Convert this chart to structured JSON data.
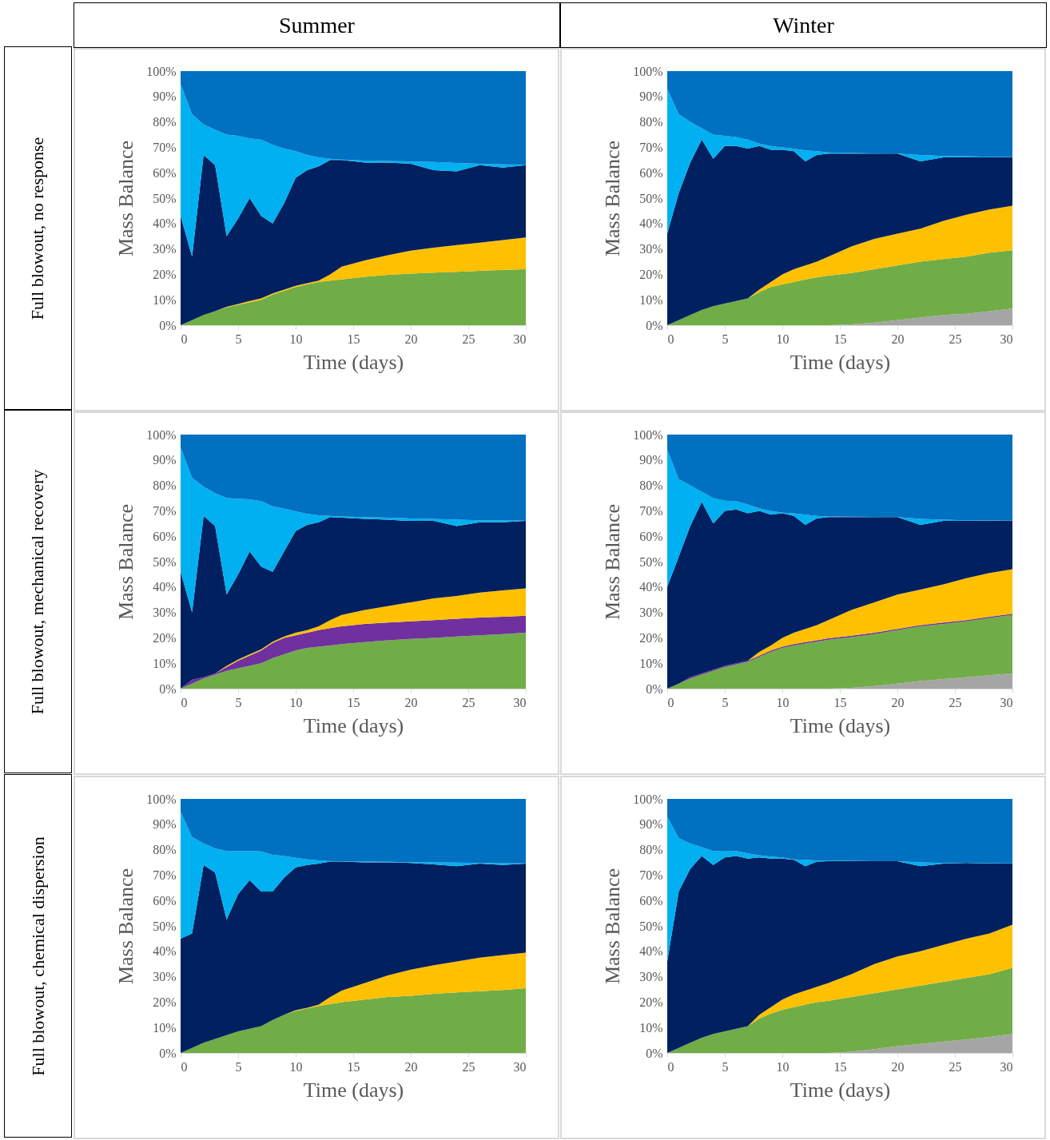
{
  "chart_data": [
    {
      "type": "area",
      "stacked": true,
      "title": "Summer",
      "annotations": [
        "Full blowout, no response"
      ],
      "xlabel": "Time (days)",
      "ylabel": "Mass Balance",
      "xlim": [
        0,
        30
      ],
      "ylim": [
        0,
        100
      ],
      "xticks": [
        0,
        5,
        10,
        15,
        20,
        25,
        30
      ],
      "yticks": [
        {
          "value": 0,
          "label": "0%"
        },
        {
          "value": 10,
          "label": "10%"
        },
        {
          "value": 20,
          "label": "20%"
        },
        {
          "value": 30,
          "label": "30%"
        },
        {
          "value": 40,
          "label": "40%"
        },
        {
          "value": 50,
          "label": "50%"
        },
        {
          "value": 60,
          "label": "60%"
        },
        {
          "value": 70,
          "label": "70%"
        },
        {
          "value": 80,
          "label": "80%"
        },
        {
          "value": 90,
          "label": "90%"
        },
        {
          "value": 100,
          "label": "100%"
        }
      ],
      "x": [
        0,
        1,
        2,
        3,
        4,
        5,
        6,
        7,
        8,
        9,
        10,
        11,
        12,
        13,
        14,
        16,
        18,
        20,
        22,
        24,
        26,
        28,
        30
      ],
      "series": [
        {
          "color": "#70ad47",
          "values": [
            0,
            2,
            4,
            5.5,
            7,
            8,
            9,
            10,
            12,
            13.5,
            15,
            16,
            17,
            17.5,
            18,
            19,
            19.8,
            20.3,
            20.7,
            21,
            21.4,
            21.8,
            22
          ]
        },
        {
          "color": "#ffc000",
          "values": [
            0,
            0,
            0,
            0,
            0.2,
            0.3,
            0.5,
            0.5,
            0.5,
            0.5,
            0.5,
            0.5,
            0.5,
            2.5,
            5,
            6.5,
            7.7,
            9,
            9.8,
            10.5,
            11.1,
            11.7,
            12.5
          ]
        },
        {
          "color": "#002060",
          "values": [
            43,
            25,
            63,
            57.5,
            27.8,
            33.7,
            40.5,
            32.5,
            27.5,
            34,
            42.5,
            44.5,
            45,
            45,
            42,
            38.5,
            36.5,
            34.2,
            30.5,
            29,
            30.5,
            28.5,
            28.5
          ]
        },
        {
          "color": "#00b0f0",
          "values": [
            52,
            56,
            12,
            14,
            40,
            32.5,
            23.5,
            30,
            31,
            21.5,
            10.5,
            6,
            3.5,
            0.5,
            0.2,
            0.8,
            0.6,
            0.9,
            3.2,
            3.3,
            0.5,
            1.3,
            0.2
          ]
        },
        {
          "color": "#0070c0",
          "values": [
            5,
            17,
            21,
            23,
            25,
            25.5,
            26.5,
            27,
            29,
            30.5,
            31.5,
            33,
            34,
            34.5,
            34.8,
            35.2,
            35.4,
            35.6,
            35.8,
            36.2,
            36.5,
            36.7,
            36.8
          ]
        }
      ]
    },
    {
      "type": "area",
      "stacked": true,
      "title": "Winter",
      "xlabel": "Time (days)",
      "ylabel": "Mass Balance",
      "xlim": [
        0,
        30
      ],
      "ylim": [
        0,
        100
      ],
      "xticks": [
        0,
        5,
        10,
        15,
        20,
        25,
        30
      ],
      "yticks": [
        {
          "value": 0,
          "label": "0%"
        },
        {
          "value": 10,
          "label": "10%"
        },
        {
          "value": 20,
          "label": "20%"
        },
        {
          "value": 30,
          "label": "30%"
        },
        {
          "value": 40,
          "label": "40%"
        },
        {
          "value": 50,
          "label": "50%"
        },
        {
          "value": 60,
          "label": "60%"
        },
        {
          "value": 70,
          "label": "70%"
        },
        {
          "value": 80,
          "label": "80%"
        },
        {
          "value": 90,
          "label": "90%"
        },
        {
          "value": 100,
          "label": "100%"
        }
      ],
      "x": [
        0,
        1,
        2,
        3,
        4,
        5,
        6,
        7,
        8,
        9,
        10,
        11,
        12,
        13,
        14,
        16,
        18,
        20,
        22,
        24,
        26,
        28,
        30
      ],
      "series": [
        {
          "color": "#a5a5a5",
          "values": [
            0,
            0,
            0,
            0,
            0,
            0,
            0,
            0,
            0,
            0,
            0,
            0,
            0,
            0,
            0,
            0.3,
            1,
            2,
            3,
            4,
            4.5,
            5.5,
            6.5
          ]
        },
        {
          "color": "#70ad47",
          "values": [
            0,
            2,
            4,
            6,
            7.5,
            8.5,
            9.5,
            10.5,
            13,
            15,
            16,
            17,
            18,
            18.8,
            19.5,
            20.2,
            21,
            21.5,
            22,
            22,
            22.5,
            23,
            23
          ]
        },
        {
          "color": "#ffc000",
          "values": [
            0,
            0,
            0,
            0,
            0,
            0,
            0,
            0,
            1,
            2,
            4,
            5,
            5.5,
            6.2,
            7.5,
            10.5,
            12,
            12.5,
            13,
            15,
            16.5,
            17,
            17.5
          ]
        },
        {
          "color": "#002060",
          "values": [
            36,
            50,
            60,
            67,
            58,
            62,
            61,
            59,
            56.5,
            52,
            49,
            46.5,
            41,
            42,
            40.5,
            36.5,
            33.5,
            31.5,
            26.5,
            25,
            22.5,
            20.5,
            19
          ]
        },
        {
          "color": "#00b0f0",
          "values": [
            57,
            31,
            16,
            4.5,
            9.5,
            4,
            3.5,
            3.5,
            1,
            1.5,
            1,
            1,
            4.3,
            1.5,
            0.5,
            0.3,
            0.1,
            0,
            2.5,
            0.6,
            0.5,
            0.3,
            0.2
          ]
        },
        {
          "color": "#0070c0",
          "values": [
            7,
            17,
            20,
            22.5,
            25,
            25.5,
            26,
            27,
            28.5,
            29.5,
            30,
            30.5,
            31.2,
            31.5,
            32,
            32.2,
            32.4,
            32.5,
            33,
            33.4,
            33.5,
            33.7,
            33.8
          ]
        }
      ]
    },
    {
      "type": "area",
      "stacked": true,
      "annotations": [
        "Full blowout, mechanical recovery"
      ],
      "xlabel": "Time (days)",
      "ylabel": "Mass Balance",
      "xlim": [
        0,
        30
      ],
      "ylim": [
        0,
        100
      ],
      "xticks": [
        0,
        5,
        10,
        15,
        20,
        25,
        30
      ],
      "yticks": [
        {
          "value": 0,
          "label": "0%"
        },
        {
          "value": 10,
          "label": "10%"
        },
        {
          "value": 20,
          "label": "20%"
        },
        {
          "value": 30,
          "label": "30%"
        },
        {
          "value": 40,
          "label": "40%"
        },
        {
          "value": 50,
          "label": "50%"
        },
        {
          "value": 60,
          "label": "60%"
        },
        {
          "value": 70,
          "label": "70%"
        },
        {
          "value": 80,
          "label": "80%"
        },
        {
          "value": 90,
          "label": "90%"
        },
        {
          "value": 100,
          "label": "100%"
        }
      ],
      "x": [
        0,
        1,
        2,
        3,
        4,
        5,
        6,
        7,
        8,
        9,
        10,
        11,
        12,
        13,
        14,
        16,
        18,
        20,
        22,
        24,
        26,
        28,
        30
      ],
      "series": [
        {
          "color": "#70ad47",
          "values": [
            0,
            2,
            4,
            5.5,
            7,
            8,
            9,
            10,
            12,
            13.5,
            15,
            16,
            16.5,
            17,
            17.5,
            18.3,
            19,
            19.6,
            20,
            20.5,
            21,
            21.5,
            22
          ]
        },
        {
          "color": "#7030a0",
          "values": [
            0,
            1.5,
            0.5,
            0.5,
            1.5,
            3,
            4,
            5,
            6,
            6.5,
            6,
            6,
            6.5,
            6.8,
            7,
            7.2,
            7,
            6.9,
            7,
            7,
            7,
            6.8,
            6.7
          ]
        },
        {
          "color": "#ffc000",
          "values": [
            0,
            0,
            0,
            0,
            0.5,
            0.5,
            0.5,
            0.5,
            0.5,
            0.5,
            1,
            1,
            1.5,
            3.2,
            4.5,
            5.5,
            6.5,
            7.5,
            8.5,
            9,
            9.8,
            10.4,
            10.8
          ]
        },
        {
          "color": "#002060",
          "values": [
            46,
            26.5,
            63.5,
            58,
            28,
            33.5,
            40.5,
            32.5,
            27.5,
            33.5,
            40,
            41.5,
            41,
            40.5,
            38.3,
            35.8,
            34,
            32,
            30.5,
            27.5,
            27.7,
            26.8,
            26.5
          ]
        },
        {
          "color": "#00b0f0",
          "values": [
            49,
            53,
            11.5,
            13,
            38,
            29.8,
            20.5,
            25.8,
            25.8,
            16.8,
            7.8,
            4.3,
            2.7,
            0.5,
            0.5,
            0.7,
            0.8,
            1,
            0.8,
            2.5,
            0.8,
            0.7,
            0.1
          ]
        },
        {
          "color": "#0070c0",
          "values": [
            5,
            17,
            20.5,
            23,
            25,
            25.2,
            25.5,
            26.2,
            28.2,
            29.2,
            30.2,
            31.2,
            31.8,
            32,
            32.2,
            32.5,
            32.7,
            33,
            33.2,
            33.5,
            33.7,
            33.8,
            33.9
          ]
        }
      ]
    },
    {
      "type": "area",
      "stacked": true,
      "xlabel": "Time (days)",
      "ylabel": "Mass Balance",
      "xlim": [
        0,
        30
      ],
      "ylim": [
        0,
        100
      ],
      "xticks": [
        0,
        5,
        10,
        15,
        20,
        25,
        30
      ],
      "yticks": [
        {
          "value": 0,
          "label": "0%"
        },
        {
          "value": 10,
          "label": "10%"
        },
        {
          "value": 20,
          "label": "20%"
        },
        {
          "value": 30,
          "label": "30%"
        },
        {
          "value": 40,
          "label": "40%"
        },
        {
          "value": 50,
          "label": "50%"
        },
        {
          "value": 60,
          "label": "60%"
        },
        {
          "value": 70,
          "label": "70%"
        },
        {
          "value": 80,
          "label": "80%"
        },
        {
          "value": 90,
          "label": "90%"
        },
        {
          "value": 100,
          "label": "100%"
        }
      ],
      "x": [
        0,
        1,
        2,
        3,
        4,
        5,
        6,
        7,
        8,
        9,
        10,
        11,
        12,
        13,
        14,
        16,
        18,
        20,
        22,
        24,
        26,
        28,
        30
      ],
      "series": [
        {
          "color": "#a5a5a5",
          "values": [
            0,
            0,
            0,
            0,
            0,
            0,
            0,
            0,
            0,
            0,
            0,
            0,
            0,
            0,
            0,
            0.3,
            1,
            2,
            3,
            3.8,
            4.5,
            5.3,
            6
          ]
        },
        {
          "color": "#70ad47",
          "values": [
            0,
            2,
            4,
            5.5,
            7,
            8.5,
            9.5,
            10.5,
            12.5,
            14.5,
            16,
            17,
            17.8,
            18.5,
            19.3,
            20,
            20.5,
            21,
            21.5,
            21.7,
            22,
            22.5,
            23
          ]
        },
        {
          "color": "#7030a0",
          "values": [
            0,
            0,
            0.5,
            0.5,
            0.5,
            0.5,
            0.5,
            0.5,
            0.5,
            0.5,
            0.5,
            0.5,
            0.5,
            0.5,
            0.5,
            0.5,
            0.5,
            0.5,
            0.5,
            0.5,
            0.5,
            0.5,
            0.5
          ]
        },
        {
          "color": "#ffc000",
          "values": [
            0,
            0,
            0,
            0,
            0,
            0,
            0,
            0,
            1.5,
            2,
            3.5,
            4.5,
            5.2,
            6,
            7.2,
            10.2,
            12,
            13.5,
            14,
            15,
            16.5,
            17.2,
            17.5
          ]
        },
        {
          "color": "#002060",
          "values": [
            40,
            50,
            59.5,
            67.5,
            57.5,
            61,
            60.5,
            58,
            55.5,
            51.5,
            49,
            46,
            41,
            42,
            40.5,
            36.5,
            33.5,
            30.5,
            25.5,
            25,
            22.5,
            20.5,
            19
          ]
        },
        {
          "color": "#00b0f0",
          "values": [
            54,
            30.5,
            16,
            4,
            10,
            4,
            3.3,
            3.5,
            1,
            1.5,
            0.3,
            1,
            4,
            1,
            0.3,
            0.2,
            0.1,
            0,
            2.3,
            0.5,
            0.3,
            0.2,
            0.1
          ]
        },
        {
          "color": "#0070c0",
          "values": [
            6,
            17.5,
            20,
            22.5,
            25,
            26,
            26.2,
            27.5,
            29,
            30,
            30.7,
            31,
            31.5,
            32,
            32.2,
            32.3,
            32.4,
            32.5,
            33.2,
            33.5,
            33.7,
            33.8,
            33.9
          ]
        }
      ]
    },
    {
      "type": "area",
      "stacked": true,
      "annotations": [
        "Full blowout, chemical dispersion"
      ],
      "xlabel": "Time (days)",
      "ylabel": "Mass Balance",
      "xlim": [
        0,
        30
      ],
      "ylim": [
        0,
        100
      ],
      "xticks": [
        0,
        5,
        10,
        15,
        20,
        25,
        30
      ],
      "yticks": [
        {
          "value": 0,
          "label": "0%"
        },
        {
          "value": 10,
          "label": "10%"
        },
        {
          "value": 20,
          "label": "20%"
        },
        {
          "value": 30,
          "label": "30%"
        },
        {
          "value": 40,
          "label": "40%"
        },
        {
          "value": 50,
          "label": "50%"
        },
        {
          "value": 60,
          "label": "60%"
        },
        {
          "value": 70,
          "label": "70%"
        },
        {
          "value": 80,
          "label": "80%"
        },
        {
          "value": 90,
          "label": "90%"
        },
        {
          "value": 100,
          "label": "100%"
        }
      ],
      "x": [
        0,
        1,
        2,
        3,
        4,
        5,
        6,
        7,
        8,
        9,
        10,
        11,
        12,
        13,
        14,
        16,
        18,
        20,
        22,
        24,
        26,
        28,
        30
      ],
      "series": [
        {
          "color": "#70ad47",
          "values": [
            0,
            2,
            4,
            5.5,
            7,
            8.5,
            9.5,
            10.5,
            13,
            15,
            16.5,
            17.5,
            18.5,
            19.3,
            20,
            21,
            22,
            22.5,
            23.3,
            23.8,
            24.3,
            24.8,
            25.5
          ]
        },
        {
          "color": "#ffc000",
          "values": [
            0,
            0,
            0,
            0,
            0,
            0,
            0,
            0,
            0,
            0,
            0.3,
            0.3,
            0.5,
            2.7,
            4.5,
            6.5,
            8.5,
            10.3,
            11.2,
            12.2,
            13.2,
            13.7,
            14
          ]
        },
        {
          "color": "#002060",
          "values": [
            45,
            45,
            70,
            65.5,
            45.5,
            54,
            58.5,
            53,
            50.5,
            54,
            56.2,
            56.2,
            55.5,
            53.3,
            50.8,
            47.5,
            44.5,
            42,
            39.7,
            37.5,
            37,
            35.5,
            35
          ]
        },
        {
          "color": "#00b0f0",
          "values": [
            50,
            38,
            8.5,
            9.5,
            27,
            17,
            11.5,
            15.8,
            14.5,
            8.5,
            3.8,
            2.2,
            1.3,
            0.2,
            0.1,
            0.3,
            0.2,
            0.3,
            0.8,
            1.4,
            0.3,
            0.7,
            0.1
          ]
        },
        {
          "color": "#0070c0",
          "values": [
            5,
            15,
            17.5,
            19.5,
            20.5,
            20.5,
            20.5,
            20.7,
            22,
            22.5,
            23.2,
            23.8,
            24.2,
            24.5,
            24.6,
            24.7,
            24.8,
            24.9,
            25,
            25.1,
            25.2,
            25.3,
            25.4
          ]
        }
      ]
    },
    {
      "type": "area",
      "stacked": true,
      "xlabel": "Time (days)",
      "ylabel": "Mass Balance",
      "xlim": [
        0,
        30
      ],
      "ylim": [
        0,
        100
      ],
      "xticks": [
        0,
        5,
        10,
        15,
        20,
        25,
        30
      ],
      "yticks": [
        {
          "value": 0,
          "label": "0%"
        },
        {
          "value": 10,
          "label": "10%"
        },
        {
          "value": 20,
          "label": "20%"
        },
        {
          "value": 30,
          "label": "30%"
        },
        {
          "value": 40,
          "label": "40%"
        },
        {
          "value": 50,
          "label": "50%"
        },
        {
          "value": 60,
          "label": "60%"
        },
        {
          "value": 70,
          "label": "70%"
        },
        {
          "value": 80,
          "label": "80%"
        },
        {
          "value": 90,
          "label": "90%"
        },
        {
          "value": 100,
          "label": "100%"
        }
      ],
      "x": [
        0,
        1,
        2,
        3,
        4,
        5,
        6,
        7,
        8,
        9,
        10,
        11,
        12,
        13,
        14,
        16,
        18,
        20,
        22,
        24,
        26,
        28,
        30
      ],
      "series": [
        {
          "color": "#a5a5a5",
          "values": [
            0,
            0,
            0,
            0,
            0,
            0,
            0,
            0,
            0,
            0,
            0,
            0,
            0,
            0,
            0,
            0.5,
            1.5,
            2.7,
            3.5,
            4.5,
            5.3,
            6.3,
            7.5
          ]
        },
        {
          "color": "#70ad47",
          "values": [
            0,
            2,
            4,
            6,
            7.5,
            8.5,
            9.5,
            10.5,
            13.5,
            15.5,
            17,
            18,
            19,
            20,
            20.5,
            21.5,
            22,
            22.3,
            23,
            23.5,
            24.2,
            24.7,
            26
          ]
        },
        {
          "color": "#ffc000",
          "values": [
            0,
            0,
            0,
            0,
            0,
            0,
            0,
            0,
            1.5,
            2.5,
            4,
            5,
            5.5,
            6,
            7,
            9,
            11.5,
            13,
            13.5,
            14.5,
            15.5,
            16,
            17
          ]
        },
        {
          "color": "#002060",
          "values": [
            36,
            61.5,
            68.5,
            71.5,
            66.5,
            68.5,
            68,
            66,
            62,
            58.5,
            55.5,
            53,
            49,
            49.3,
            48,
            44.5,
            40.5,
            37.5,
            33.5,
            32,
            29.8,
            27.5,
            24
          ]
        },
        {
          "color": "#00b0f0",
          "values": [
            57,
            21,
            10,
            3.5,
            5.5,
            2.3,
            2,
            2,
            0.8,
            0.8,
            0.5,
            0.2,
            2.5,
            0.5,
            0.2,
            0.1,
            0,
            0,
            1.5,
            0.3,
            0,
            0.2,
            0.1
          ]
        },
        {
          "color": "#0070c0",
          "values": [
            7,
            15.5,
            17.5,
            19,
            20.5,
            20.7,
            20.5,
            21.5,
            22.2,
            22.7,
            23,
            23.8,
            24,
            24.2,
            24.3,
            24.4,
            24.5,
            24.5,
            25,
            25.2,
            25.2,
            25.3,
            25.4
          ]
        }
      ]
    }
  ]
}
